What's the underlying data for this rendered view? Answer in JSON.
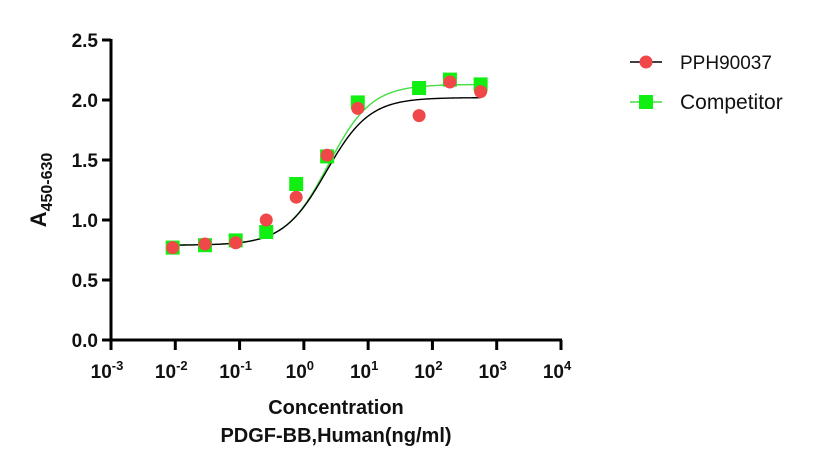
{
  "chart_data": {
    "type": "scatter",
    "title": "",
    "xlabel": "Concentration",
    "xlabel_line2": "PDGF-BB,Human(ng/ml)",
    "ylabel": "A",
    "ylabel_subscript": "450-630",
    "xscale": "log",
    "xlim": [
      0.001,
      10000
    ],
    "ylim": [
      0,
      2.5
    ],
    "x_ticks": [
      {
        "base": "10",
        "exp": "-3"
      },
      {
        "base": "10",
        "exp": "-2"
      },
      {
        "base": "10",
        "exp": "-1"
      },
      {
        "base": "10",
        "exp": "0"
      },
      {
        "base": "10",
        "exp": "1"
      },
      {
        "base": "10",
        "exp": "2"
      },
      {
        "base": "10",
        "exp": "3"
      },
      {
        "base": "10",
        "exp": "4"
      }
    ],
    "y_ticks": [
      "0.0",
      "0.5",
      "1.0",
      "1.5",
      "2.0",
      "2.5"
    ],
    "grid": false,
    "legend_position": "top-right",
    "x": [
      0.0091,
      0.029,
      0.087,
      0.26,
      0.76,
      2.3,
      6.9,
      62,
      187,
      562
    ],
    "series": [
      {
        "name": "PPH90037",
        "marker": "circle",
        "color": "#f04848",
        "line_color": "#000000",
        "values": [
          0.77,
          0.8,
          0.81,
          1.0,
          1.19,
          1.54,
          1.93,
          1.87,
          2.15,
          2.07
        ],
        "fit": {
          "bottom": 0.79,
          "top": 2.02,
          "log_ec50": 0.35,
          "hill": 1.3
        }
      },
      {
        "name": "Competitor",
        "marker": "square",
        "color": "#11ee11",
        "line_color": "#44dd44",
        "values": [
          0.77,
          0.79,
          0.83,
          0.9,
          1.3,
          1.53,
          1.98,
          2.1,
          2.17,
          2.13
        ],
        "fit": {
          "bottom": 0.79,
          "top": 2.13,
          "log_ec50": 0.38,
          "hill": 1.3
        }
      }
    ]
  }
}
